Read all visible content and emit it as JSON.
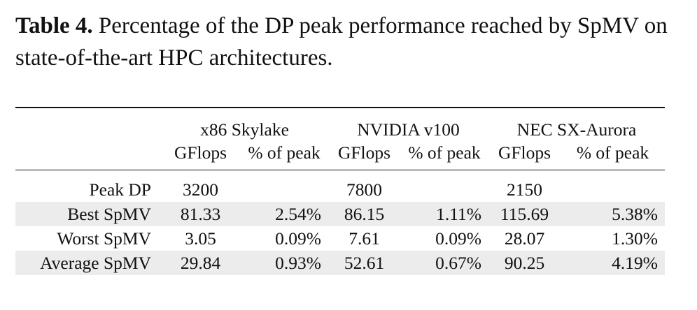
{
  "caption": {
    "label": "Table 4.",
    "text": " Percentage of the DP peak performance reached by SpMV on state-of-the-art HPC architectures."
  },
  "table": {
    "groups": [
      "x86 Skylake",
      "NVIDIA v100",
      "NEC SX-Aurora"
    ],
    "sub_headers": [
      "GFlops",
      "% of peak",
      "GFlops",
      "% of peak",
      "GFlops",
      "% of peak"
    ],
    "rows": [
      {
        "label": "Peak DP",
        "cells": [
          "3200",
          "",
          "7800",
          "",
          "2150",
          ""
        ]
      },
      {
        "label": "Best SpMV",
        "cells": [
          "81.33",
          "2.54%",
          "86.15",
          "1.11%",
          "115.69",
          "5.38%"
        ]
      },
      {
        "label": "Worst SpMV",
        "cells": [
          "3.05",
          "0.09%",
          "7.61",
          "0.09%",
          "28.07",
          "1.30%"
        ]
      },
      {
        "label": "Average SpMV",
        "cells": [
          "29.84",
          "0.93%",
          "52.61",
          "0.67%",
          "90.25",
          "4.19%"
        ]
      }
    ]
  }
}
